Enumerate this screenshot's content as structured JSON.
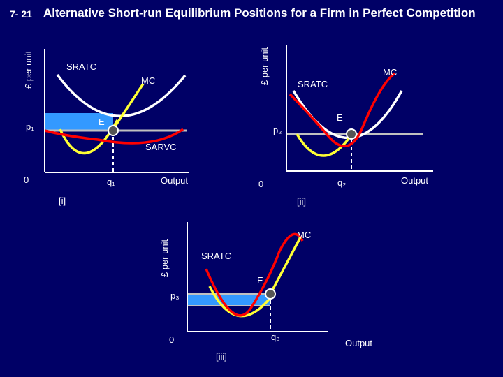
{
  "slide": {
    "number": "7- 21",
    "title": "Alternative Short-run Equilibrium Positions for a Firm in Perfect Competition"
  },
  "colors": {
    "background": "#000066",
    "mc": "#ff0000",
    "sratc": "#ffffff",
    "sarvc": "#ffff33",
    "price_line": "#c0c0c0",
    "loss_area": "#3399ff",
    "text": "#ffffff"
  },
  "panels": [
    {
      "id": "i",
      "label": "[i]",
      "y_axis_label": "£ per unit",
      "x_axis_label": "Output",
      "origin_label": "0",
      "price_label": "p₁",
      "quantity_label": "q₁",
      "equilibrium_label": "E",
      "curve_labels": {
        "sratc": "SRATC",
        "mc": "MC",
        "sarvc": "SARVC"
      }
    },
    {
      "id": "ii",
      "label": "[ii]",
      "y_axis_label": "£ per unit",
      "x_axis_label": "Output",
      "origin_label": "0",
      "price_label": "p₂",
      "quantity_label": "q₂",
      "equilibrium_label": "E",
      "curve_labels": {
        "sratc": "SRATC",
        "mc": "MC"
      }
    },
    {
      "id": "iii",
      "label": "[iii]",
      "y_axis_label": "£ per unit",
      "x_axis_label": "Output",
      "origin_label": "0",
      "price_label": "p₃",
      "quantity_label": "q₃",
      "equilibrium_label": "E",
      "curve_labels": {
        "sratc": "SRATC",
        "mc": "MC"
      }
    }
  ]
}
